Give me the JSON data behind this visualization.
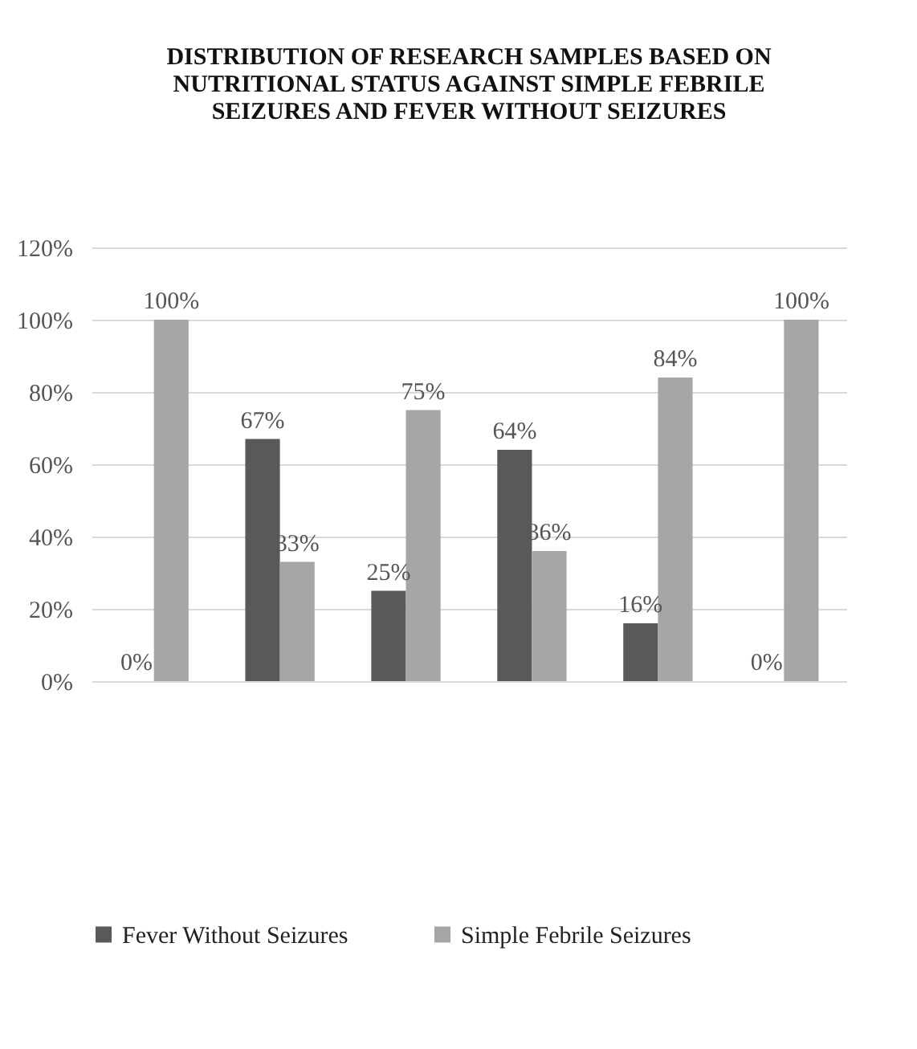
{
  "chart_data": {
    "type": "bar",
    "title": "DISTRIBUTION OF RESEARCH SAMPLES BASED ON NUTRITIONAL STATUS AGAINST SIMPLE FEBRILE SEIZURES AND FEVER WITHOUT SEIZURES",
    "categories": [
      null,
      null,
      null,
      null,
      null,
      null
    ],
    "series": [
      {
        "name": "Fever Without Seizures",
        "color": "#595959",
        "values": [
          0,
          67,
          25,
          64,
          16,
          0
        ],
        "value_labels": [
          "0%",
          "67%",
          "25%",
          "64%",
          "16%",
          "0%"
        ]
      },
      {
        "name": "Simple Febrile Seizures",
        "color": "#a6a6a6",
        "values": [
          100,
          33,
          75,
          36,
          84,
          100
        ],
        "value_labels": [
          "100%",
          "33%",
          "75%",
          "36%",
          "84%",
          "100%"
        ]
      }
    ],
    "ylim": [
      0,
      120
    ],
    "yticks": [
      {
        "value": 0,
        "label": "0%"
      },
      {
        "value": 20,
        "label": "20%"
      },
      {
        "value": 40,
        "label": "40%"
      },
      {
        "value": 60,
        "label": "60%"
      },
      {
        "value": 80,
        "label": "80%"
      },
      {
        "value": 100,
        "label": "100%"
      },
      {
        "value": 120,
        "label": "120%"
      }
    ],
    "grid": "y",
    "legend": "bottom",
    "tick_labels": "y"
  }
}
